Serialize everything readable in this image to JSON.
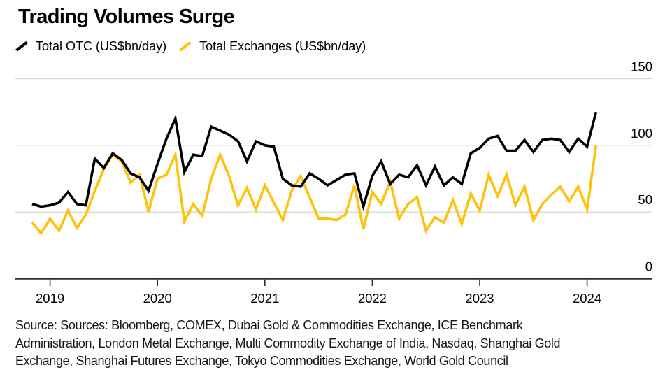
{
  "title": "Trading Volumes Surge",
  "legend": {
    "items": [
      {
        "label": "Total OTC (US$bn/day)",
        "color": "#000000"
      },
      {
        "label": "Total Exchanges (US$bn/day)",
        "color": "#FFC20E"
      }
    ]
  },
  "source_lines": [
    "Source: Sources: Bloomberg, COMEX, Dubai Gold & Commodities Exchange, ICE Benchmark",
    "Administration, London Metal Exchange, Multi Commodity Exchange of India, Nasdaq, Shanghai Gold",
    "Exchange, Shanghai Futures Exchange, Tokyo Commodities Exchange, World Gold Council"
  ],
  "chart_data": {
    "type": "line",
    "title": "Trading Volumes Surge",
    "x_frequency": "monthly",
    "x_start": "2018-11",
    "x_end": "2024-02",
    "x_tick_labels": [
      "2019",
      "2020",
      "2021",
      "2022",
      "2023",
      "2024"
    ],
    "x_tick_month_indices": [
      2,
      14,
      26,
      38,
      50,
      62
    ],
    "y_ticks": [
      0,
      50,
      100,
      150
    ],
    "ylim": [
      0,
      150
    ],
    "y_axis_side": "right",
    "grid": "horizontal",
    "legend_position": "top-left",
    "colors": {
      "grid": "#d8d8d8",
      "axis": "#2e2e2e",
      "text": "#000000"
    },
    "series": [
      {
        "name": "Total OTC (US$bn/day)",
        "color": "#000000",
        "values": [
          56,
          54,
          55,
          57,
          65,
          56,
          55,
          90,
          83,
          94,
          89,
          79,
          76,
          66,
          86,
          105,
          120,
          80,
          93,
          92,
          114,
          111,
          108,
          103,
          88,
          103,
          100,
          99,
          75,
          70,
          69,
          79,
          75,
          70,
          74,
          78,
          79,
          54,
          77,
          88,
          71,
          78,
          76,
          85,
          70,
          84,
          70,
          76,
          71,
          94,
          98,
          105,
          107,
          96,
          96,
          104,
          95,
          104,
          105,
          104,
          95,
          105,
          99,
          125
        ]
      },
      {
        "name": "Total Exchanges (US$bn/day)",
        "color": "#FFC20E",
        "values": [
          42,
          34,
          45,
          36,
          51,
          38,
          48,
          66,
          82,
          93,
          88,
          72,
          78,
          50,
          75,
          78,
          93,
          43,
          56,
          47,
          75,
          93,
          77,
          55,
          68,
          52,
          70,
          57,
          44,
          66,
          77,
          61,
          45,
          45,
          44,
          48,
          70,
          37,
          65,
          56,
          73,
          45,
          56,
          61,
          36,
          46,
          42,
          59,
          41,
          64,
          51,
          78,
          62,
          78,
          55,
          69,
          44,
          56,
          63,
          69,
          58,
          69,
          52,
          100
        ]
      }
    ]
  }
}
